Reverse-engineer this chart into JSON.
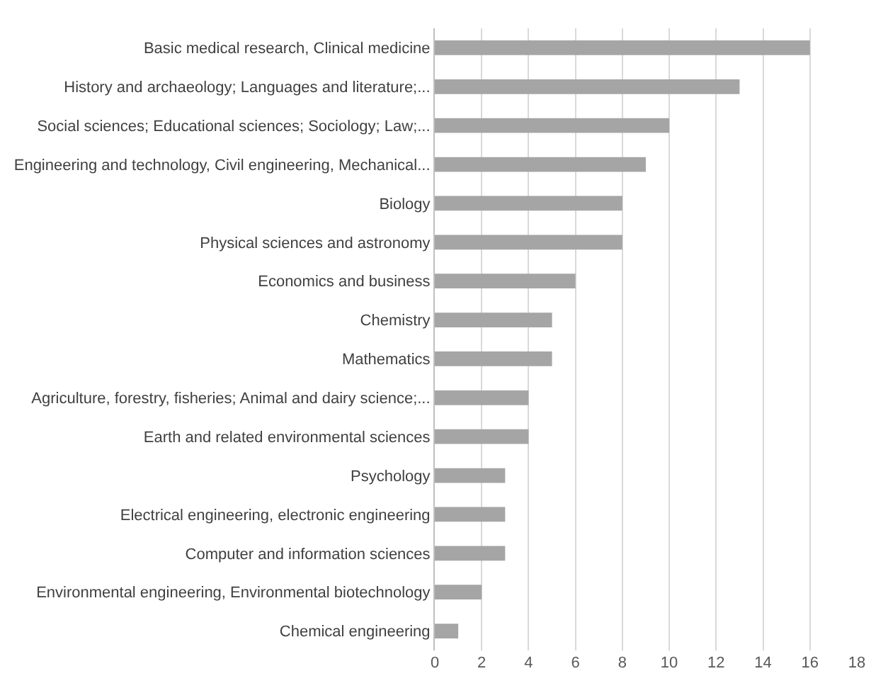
{
  "chart_data": {
    "type": "bar",
    "orientation": "horizontal",
    "categories": [
      "Basic medical research, Clinical medicine",
      "History and archaeology; Languages and literature;...",
      "Social sciences; Educational sciences; Sociology; Law;...",
      "Engineering and technology, Civil engineering, Mechanical...",
      "Biology",
      "Physical sciences and astronomy",
      "Economics and business",
      "Chemistry",
      "Mathematics",
      "Agriculture, forestry, fisheries; Animal and dairy science;...",
      "Earth and related environmental sciences",
      "Psychology",
      "Electrical engineering, electronic engineering",
      "Computer and information sciences",
      "Environmental engineering, Environmental biotechnology",
      "Chemical engineering"
    ],
    "values": [
      16,
      13,
      10,
      9,
      8,
      8,
      6,
      5,
      5,
      4,
      4,
      3,
      3,
      3,
      2,
      1
    ],
    "color": "#a5a5a5",
    "xlim": [
      0,
      18
    ],
    "xticks": [
      0,
      2,
      4,
      6,
      8,
      10,
      12,
      14,
      16,
      18
    ],
    "grid": "x"
  }
}
